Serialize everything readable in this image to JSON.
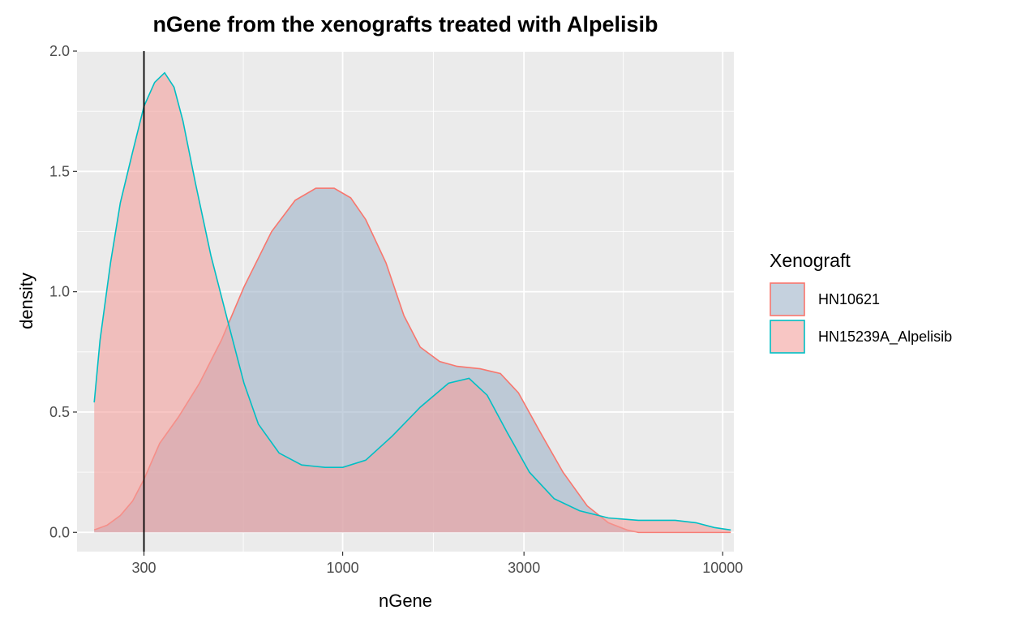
{
  "chart_data": {
    "type": "area",
    "title": "nGene from the xenografts treated with Alpelisib",
    "xlabel": "nGene",
    "ylabel": "density",
    "x_scale": "log10",
    "xlim": [
      200,
      10700
    ],
    "ylim": [
      -0.08,
      2.0
    ],
    "x_ticks": [
      300,
      1000,
      3000,
      10000
    ],
    "x_tick_labels": [
      "300",
      "1000",
      "3000",
      "10000"
    ],
    "y_ticks": [
      0.0,
      0.5,
      1.0,
      1.5,
      2.0
    ],
    "y_tick_labels": [
      "0.0",
      "0.5",
      "1.0",
      "1.5",
      "2.0"
    ],
    "vline": 300,
    "grid": true,
    "legend_position": "right",
    "legend_title": "Xenograft",
    "series": [
      {
        "name": "HN10621",
        "line_color": "#F8766D",
        "fill_color": "#9FB3C8",
        "x": [
          222,
          240,
          260,
          280,
          300,
          330,
          370,
          420,
          480,
          550,
          650,
          750,
          850,
          950,
          1050,
          1150,
          1300,
          1450,
          1600,
          1800,
          2000,
          2300,
          2600,
          2900,
          3300,
          3800,
          4400,
          5000,
          5600,
          6000,
          7000,
          8000,
          9000,
          10000,
          10500
        ],
        "y": [
          0.01,
          0.03,
          0.07,
          0.13,
          0.22,
          0.37,
          0.48,
          0.62,
          0.8,
          1.02,
          1.25,
          1.38,
          1.43,
          1.43,
          1.39,
          1.3,
          1.12,
          0.9,
          0.77,
          0.71,
          0.69,
          0.68,
          0.66,
          0.58,
          0.42,
          0.25,
          0.11,
          0.04,
          0.01,
          0.0,
          0.0,
          0.0,
          0.0,
          0.0,
          0.0
        ]
      },
      {
        "name": "HN15239A_Alpelisib",
        "line_color": "#00BFC4",
        "fill_color": "#F4A09C",
        "x": [
          222,
          230,
          245,
          260,
          280,
          300,
          320,
          340,
          360,
          380,
          410,
          450,
          500,
          550,
          600,
          680,
          780,
          900,
          1000,
          1150,
          1350,
          1600,
          1900,
          2150,
          2400,
          2700,
          3100,
          3600,
          4200,
          5000,
          6000,
          7500,
          8500,
          9500,
          10500
        ],
        "y": [
          0.54,
          0.8,
          1.12,
          1.37,
          1.58,
          1.77,
          1.87,
          1.91,
          1.85,
          1.71,
          1.45,
          1.15,
          0.87,
          0.62,
          0.45,
          0.33,
          0.28,
          0.27,
          0.27,
          0.3,
          0.4,
          0.52,
          0.62,
          0.64,
          0.57,
          0.42,
          0.25,
          0.14,
          0.09,
          0.06,
          0.05,
          0.05,
          0.04,
          0.02,
          0.01
        ]
      }
    ]
  }
}
